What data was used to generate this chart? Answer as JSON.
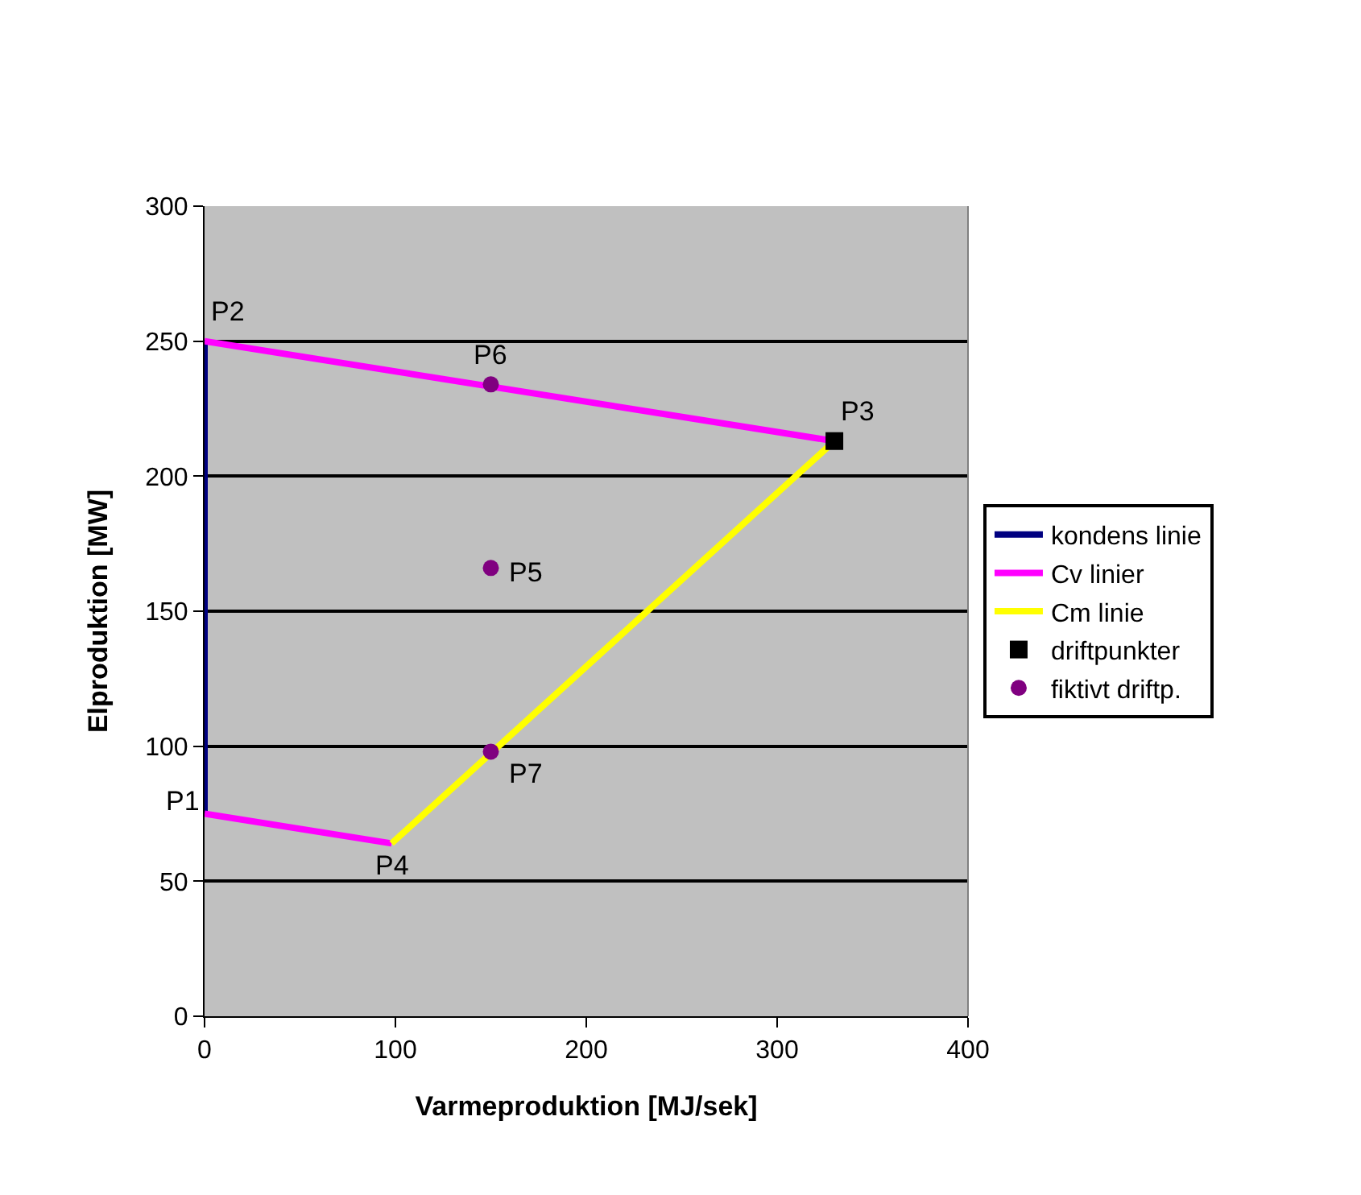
{
  "chart_data": {
    "type": "line",
    "xlabel": "Varmeproduktion [MJ/sek]",
    "ylabel": "Elproduktion [MW]",
    "xlim": [
      0,
      400
    ],
    "xticks": [
      0,
      100,
      200,
      300,
      400
    ],
    "ylim": [
      0,
      300
    ],
    "yticks": [
      0,
      50,
      100,
      150,
      200,
      250,
      300
    ],
    "grid": "y",
    "legend": "right",
    "line_style": "solid",
    "series": [
      {
        "name": "kondens linie",
        "color": "#000080",
        "x": [
          0,
          0
        ],
        "values": [
          75,
          250
        ],
        "marker": "none"
      },
      {
        "name": "Cv linier",
        "color": "#ff00ff",
        "x": [
          0,
          330,
          null,
          0,
          98
        ],
        "values": [
          250,
          213,
          null,
          75,
          64
        ],
        "marker": "none"
      },
      {
        "name": "Cm linie",
        "color": "#ffff00",
        "x": [
          98,
          330
        ],
        "values": [
          64,
          213
        ],
        "marker": "none"
      },
      {
        "name": "driftpunkter",
        "type": "scatter",
        "color": "#000000",
        "x": [
          330
        ],
        "values": [
          213
        ],
        "marker": "square"
      },
      {
        "name": "fiktivt driftp.",
        "type": "scatter",
        "color": "#800080",
        "x": [
          150,
          150,
          150
        ],
        "values": [
          166,
          234,
          98
        ],
        "marker": "circle"
      }
    ],
    "annotations": [
      {
        "text": "P1",
        "x": 0,
        "y": 75
      },
      {
        "text": "P2",
        "x": 0,
        "y": 250
      },
      {
        "text": "P3",
        "x": 330,
        "y": 213
      },
      {
        "text": "P4",
        "x": 98,
        "y": 64
      },
      {
        "text": "P5",
        "x": 150,
        "y": 166
      },
      {
        "text": "P6",
        "x": 150,
        "y": 234
      },
      {
        "text": "P7",
        "x": 150,
        "y": 98
      }
    ]
  }
}
